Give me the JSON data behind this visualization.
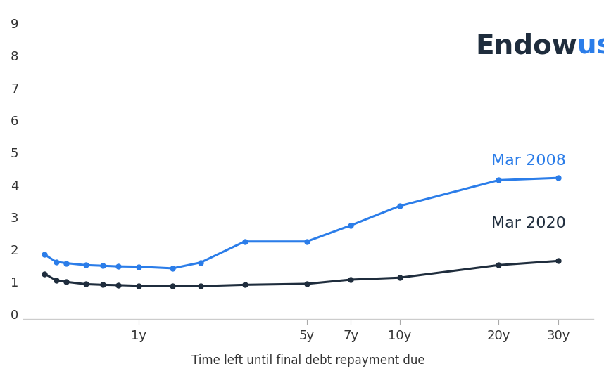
{
  "title_endow": "Endow",
  "title_us": "us",
  "xlabel": "Time left until final debt repayment due",
  "background_color": "#ffffff",
  "x_positions": [
    0.083,
    0.167,
    0.25,
    0.417,
    0.583,
    0.75,
    1.0,
    1.5,
    2.0,
    3.0,
    5.0,
    7.0,
    10.0,
    20.0,
    30.0
  ],
  "mar2008_y": [
    1.85,
    1.62,
    1.58,
    1.52,
    1.5,
    1.48,
    1.47,
    1.42,
    1.6,
    2.25,
    2.25,
    2.75,
    3.35,
    4.15,
    4.22
  ],
  "mar2020_y": [
    1.25,
    1.05,
    1.0,
    0.93,
    0.91,
    0.9,
    0.88,
    0.87,
    0.87,
    0.91,
    0.94,
    1.07,
    1.13,
    1.52,
    1.65
  ],
  "mar2008_color": "#2b7de9",
  "mar2020_color": "#1f2d3d",
  "x_ticks_pos": [
    1.0,
    5.0,
    7.0,
    10.0,
    20.0,
    30.0
  ],
  "x_ticks_labels": [
    "1y",
    "5y",
    "7y",
    "10y",
    "20y",
    "30y"
  ],
  "y_ticks": [
    0,
    1,
    2,
    3,
    4,
    5,
    6,
    7,
    8,
    9
  ],
  "ylim": [
    -0.15,
    9.4
  ],
  "xlim": [
    -0.5,
    32.0
  ],
  "label_2008": "Mar 2008",
  "label_2020": "Mar 2020",
  "label_2008_color": "#2b7de9",
  "label_2020_color": "#1f2d3d",
  "endow_color": "#1f2d3d",
  "us_color": "#2b7de9",
  "marker_size": 5,
  "line_width": 2.2,
  "logo_fontsize": 28,
  "label_fontsize": 16,
  "tick_fontsize": 13
}
